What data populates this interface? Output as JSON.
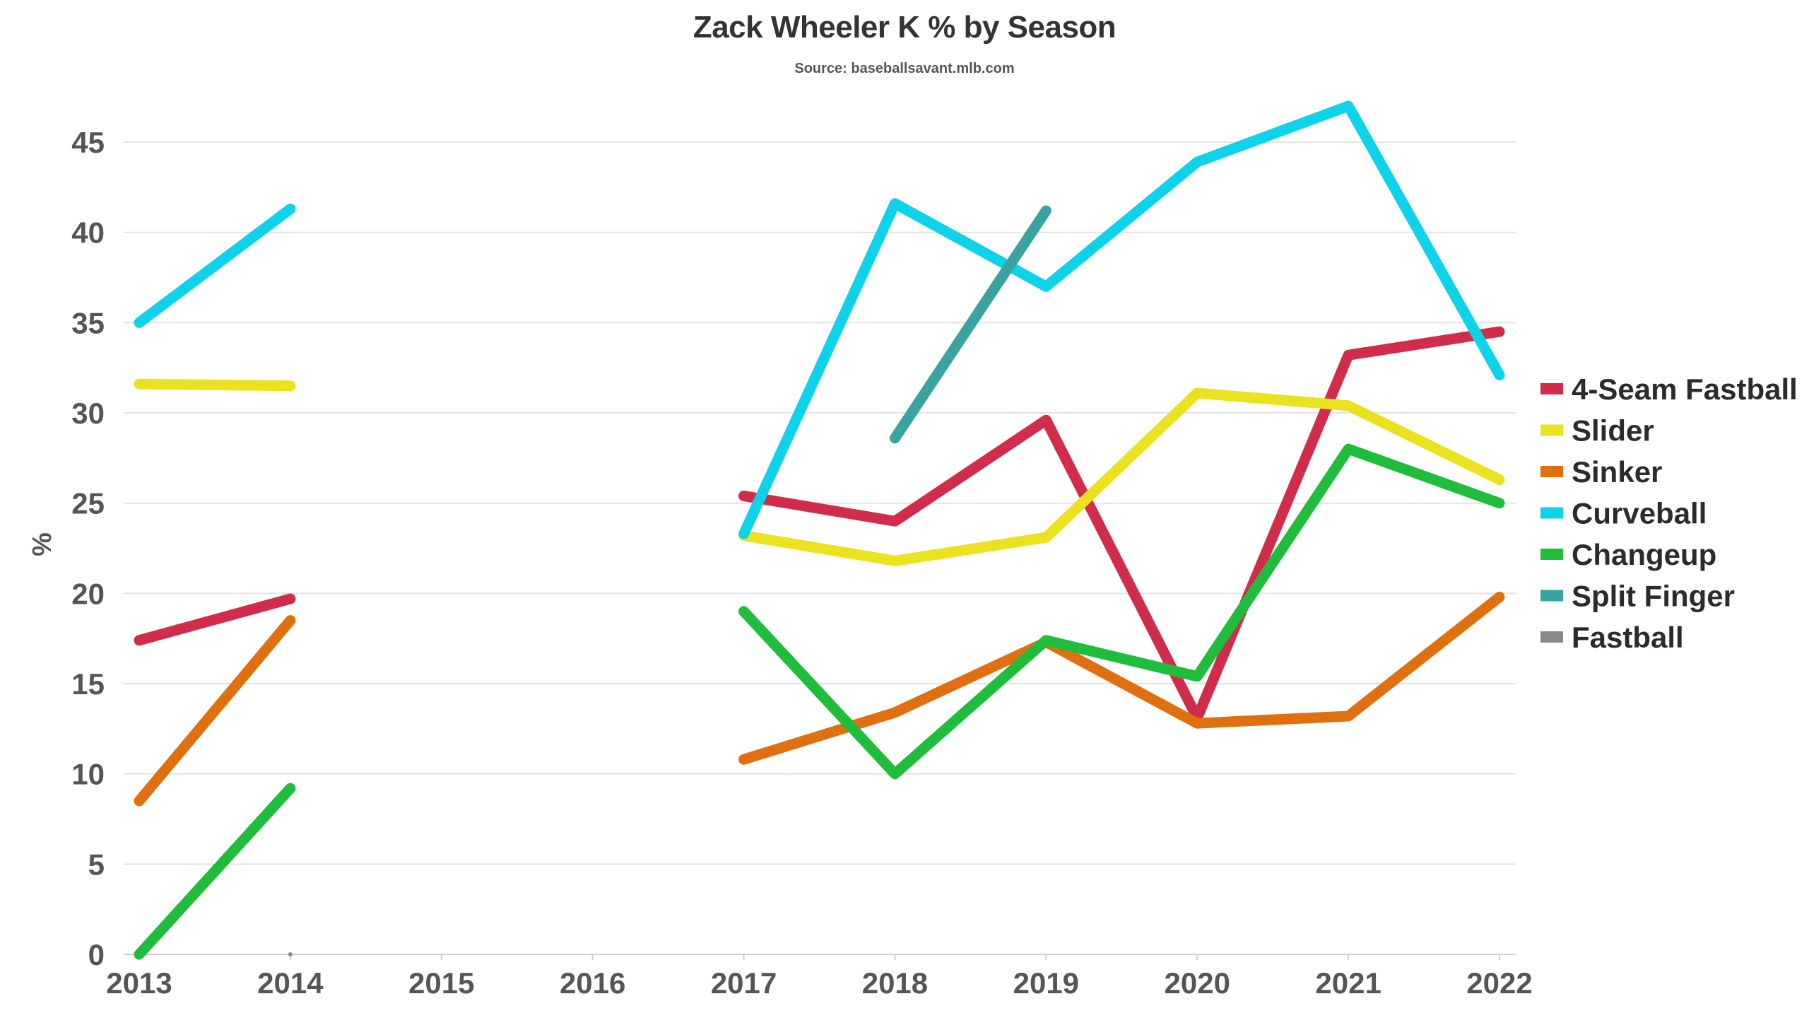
{
  "chart_data": {
    "type": "line",
    "title": "Zack Wheeler K % by Season",
    "subtitle": "Source: baseballsavant.mlb.com",
    "xlabel": "",
    "ylabel": "%",
    "x": [
      "2013",
      "2014",
      "2015",
      "2016",
      "2017",
      "2018",
      "2019",
      "2020",
      "2021",
      "2022"
    ],
    "yticks": [
      "0",
      "5",
      "10",
      "15",
      "20",
      "25",
      "30",
      "35",
      "40",
      "45"
    ],
    "ylim": [
      0,
      47
    ],
    "grid": true,
    "legend_position": "right",
    "series": [
      {
        "name": "4-Seam Fastball",
        "color": "#d12c4a",
        "values": [
          17.4,
          19.7,
          null,
          null,
          25.4,
          24.0,
          29.6,
          13.1,
          33.2,
          34.5
        ]
      },
      {
        "name": "Slider",
        "color": "#ebe21f",
        "values": [
          31.6,
          31.5,
          null,
          null,
          23.2,
          21.8,
          23.1,
          31.1,
          30.4,
          26.3
        ]
      },
      {
        "name": "Sinker",
        "color": "#e0700f",
        "values": [
          8.5,
          18.5,
          null,
          null,
          10.8,
          13.4,
          17.3,
          12.8,
          13.2,
          19.8
        ]
      },
      {
        "name": "Curveball",
        "color": "#0ed2e9",
        "values": [
          35.0,
          41.3,
          null,
          null,
          23.3,
          41.6,
          37.0,
          43.9,
          47.0,
          32.1
        ]
      },
      {
        "name": "Changeup",
        "color": "#20bd3c",
        "values": [
          0.0,
          9.2,
          null,
          null,
          19.0,
          10.0,
          17.4,
          15.4,
          28.0,
          25.0
        ]
      },
      {
        "name": "Split Finger",
        "color": "#3aa3a0",
        "values": [
          null,
          null,
          null,
          null,
          null,
          28.6,
          41.2,
          null,
          null,
          null
        ]
      },
      {
        "name": "Fastball",
        "color": "#888888",
        "values": [
          null,
          0.0,
          null,
          null,
          null,
          null,
          null,
          null,
          null,
          null
        ]
      }
    ]
  }
}
